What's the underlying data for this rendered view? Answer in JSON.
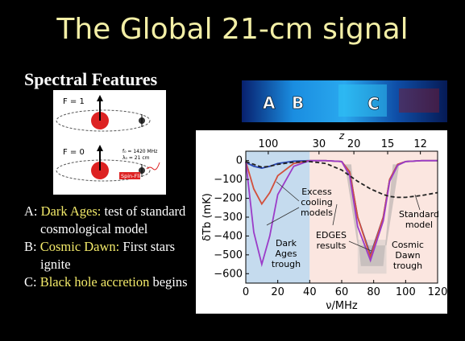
{
  "title": "The Global 21-cm signal",
  "subtitle": "Spectral Features",
  "diagram": {
    "upper_state": "F = 1",
    "lower_state": "F = 0",
    "frequency": "f₀ = 1420 MHz",
    "wavelength": "λ₀ = 21 cm",
    "transition": "Spin-Flip"
  },
  "spectrogram": {
    "labels": [
      "A",
      "B",
      "C"
    ]
  },
  "features": [
    {
      "letter": "A:",
      "highlight": "Dark Ages:",
      "text": "test of standard cosmological model"
    },
    {
      "letter": "B:",
      "highlight": "Cosmic Dawn:",
      "text": "First stars ignite"
    },
    {
      "letter": "C:",
      "highlight": "Black hole accretion",
      "text": "begins"
    }
  ],
  "chart": {
    "type": "line",
    "x_label": "ν/MHz",
    "y_label": "δTb (mK)",
    "x": [
      0,
      5,
      10,
      15,
      20,
      30,
      40,
      50,
      60,
      65,
      70,
      78,
      86,
      90,
      95,
      100,
      110,
      120
    ],
    "series": [
      {
        "color": "#2846b4",
        "dash": false,
        "values": [
          -10,
          -30,
          -40,
          -30,
          -15,
          -3,
          0,
          0,
          -5,
          -60,
          -300,
          -500,
          -300,
          -100,
          -20,
          -5,
          0,
          0
        ]
      },
      {
        "color": "#d2503c",
        "dash": false,
        "values": [
          -5,
          -150,
          -230,
          -170,
          -80,
          -15,
          0,
          0,
          -5,
          -60,
          -300,
          -510,
          -300,
          -100,
          -20,
          -5,
          0,
          0
        ]
      },
      {
        "color": "#9b3cc8",
        "dash": false,
        "values": [
          -5,
          -380,
          -550,
          -400,
          -180,
          -30,
          0,
          0,
          -5,
          -80,
          -350,
          -530,
          -320,
          -110,
          -25,
          -5,
          0,
          0
        ]
      },
      {
        "color": "#222222",
        "dash": true,
        "values": [
          -5,
          -20,
          -35,
          -30,
          -20,
          -8,
          -5,
          -15,
          -50,
          -80,
          -110,
          -150,
          -180,
          -190,
          -195,
          -195,
          -185,
          -170
        ]
      }
    ],
    "regions": [
      {
        "from": 0,
        "to": 40,
        "color": "#c5dbee"
      },
      {
        "from": 40,
        "to": 120,
        "color": "#fbe6e0"
      }
    ],
    "xlim": [
      0,
      120
    ],
    "xticks": [
      0,
      20,
      40,
      60,
      80,
      100,
      120
    ],
    "ylim": [
      -650,
      50
    ],
    "yticks": [
      {
        "value": 0,
        "label": "0"
      },
      {
        "value": -100,
        "label": "−100"
      },
      {
        "value": -200,
        "label": "−200"
      },
      {
        "value": -300,
        "label": "−300"
      },
      {
        "value": -400,
        "label": "−400"
      },
      {
        "value": -500,
        "label": "−500"
      },
      {
        "value": -600,
        "label": "−600"
      }
    ],
    "z_axis": {
      "label": "z",
      "nu0": 1420,
      "ticks": [
        100,
        30,
        20,
        15,
        12
      ]
    },
    "annotations": {
      "cooling": [
        "Excess",
        "cooling",
        "models"
      ],
      "dark_ages": [
        "Dark",
        "Ages",
        "trough"
      ],
      "cosmic_dawn": [
        "Cosmic",
        "Dawn",
        "trough"
      ],
      "standard": [
        "Standard",
        "model"
      ],
      "edges": [
        "EDGES",
        "results"
      ]
    }
  }
}
